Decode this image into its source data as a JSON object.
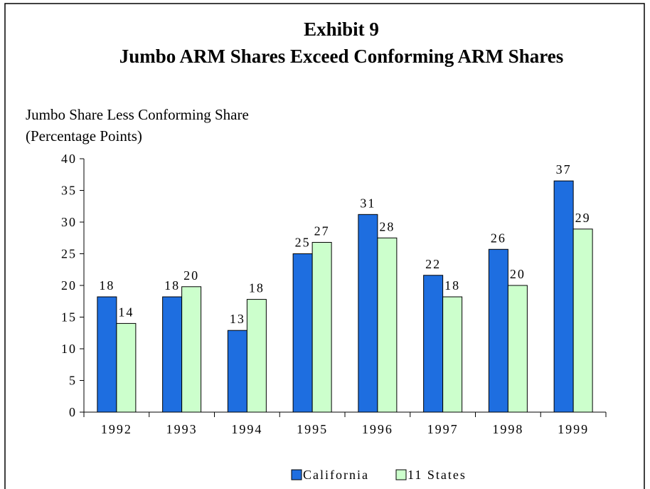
{
  "chart_data": {
    "type": "bar",
    "title": "Exhibit 9",
    "subtitle": "Jumbo ARM Shares Exceed Conforming ARM Shares",
    "y_label": [
      "Jumbo Share Less Conforming Share",
      "(Percentage Points)"
    ],
    "categories": [
      "1992",
      "1993",
      "1994",
      "1995",
      "1996",
      "1997",
      "1998",
      "1999"
    ],
    "series": [
      {
        "name": "California",
        "color": "#1e6ee0",
        "values": [
          18.2,
          18.2,
          12.9,
          25,
          31.2,
          21.6,
          25.7,
          36.5
        ],
        "value_labels": [
          "18",
          "18",
          "13",
          "25",
          "31",
          "22",
          "26",
          "37"
        ]
      },
      {
        "name": "11 States",
        "color": "#ccffcc",
        "values": [
          14,
          19.8,
          17.8,
          26.8,
          27.5,
          18.2,
          20,
          28.9
        ],
        "value_labels": [
          "14",
          "20",
          "18",
          "27",
          "28",
          "18",
          "20",
          "29"
        ]
      }
    ],
    "ylim": [
      0,
      40
    ],
    "yticks": [
      0,
      5,
      10,
      15,
      20,
      25,
      30,
      35,
      40
    ],
    "legend": "bottom"
  }
}
